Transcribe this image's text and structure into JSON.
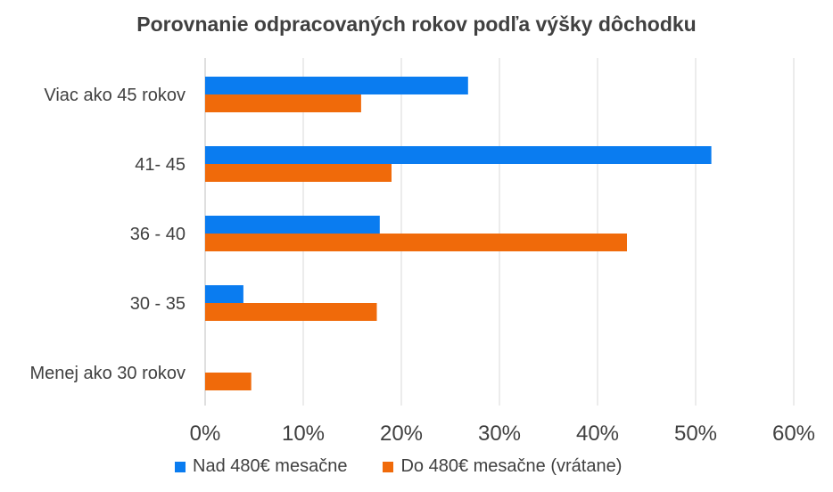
{
  "chart_data": {
    "type": "bar",
    "orientation": "horizontal",
    "title": "Porovnanie odpracovaných rokov podľa výšky dôchodku",
    "categories": [
      "Viac ako 45 rokov",
      "41- 45",
      "36 - 40",
      "30 - 35",
      "Menej ako 30 rokov"
    ],
    "series": [
      {
        "name": "Nad 480€ mesačne",
        "color": "#0a7cf0",
        "values": [
          26.8,
          51.6,
          17.8,
          3.9,
          0
        ]
      },
      {
        "name": "Do 480€ mesačne (vrátane)",
        "color": "#f06a0a",
        "values": [
          15.9,
          19.0,
          43.0,
          17.5,
          4.7
        ]
      }
    ],
    "xlim": [
      0,
      60
    ],
    "xticks": [
      "0%",
      "10%",
      "20%",
      "30%",
      "40%",
      "50%",
      "60%"
    ],
    "grid": true,
    "legend_position": "bottom"
  }
}
